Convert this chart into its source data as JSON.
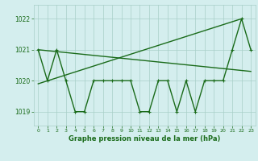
{
  "x": [
    0,
    1,
    2,
    3,
    4,
    5,
    6,
    7,
    8,
    9,
    10,
    11,
    12,
    13,
    14,
    15,
    16,
    17,
    18,
    19,
    20,
    21,
    22,
    23
  ],
  "line1": [
    1021,
    1020,
    1021,
    1020,
    1019,
    1019,
    1020,
    1020,
    1020,
    1020,
    1020,
    1019,
    1019,
    1020,
    1020,
    1019,
    1020,
    1019,
    1020,
    1020,
    1020,
    1021,
    1022,
    1021
  ],
  "line2_x": [
    0,
    23
  ],
  "line2_y": [
    1021.0,
    1020.3
  ],
  "line3_x": [
    0,
    22
  ],
  "line3_y": [
    1019.9,
    1022.0
  ],
  "color": "#1a6b1a",
  "bg_color": "#d4eeee",
  "grid_color": "#a8cfc8",
  "xlabel": "Graphe pression niveau de la mer (hPa)",
  "ylim": [
    1018.55,
    1022.45
  ],
  "xlim": [
    -0.5,
    23.5
  ],
  "yticks": [
    1019,
    1020,
    1021,
    1022
  ],
  "xticks": [
    0,
    1,
    2,
    3,
    4,
    5,
    6,
    7,
    8,
    9,
    10,
    11,
    12,
    13,
    14,
    15,
    16,
    17,
    18,
    19,
    20,
    21,
    22,
    23
  ],
  "marker": "+",
  "markersize": 3.5,
  "linewidth": 1.0
}
